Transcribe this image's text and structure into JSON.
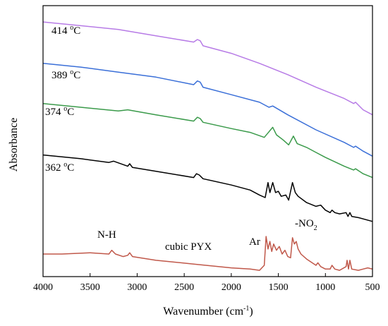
{
  "chart_data": {
    "type": "line",
    "xlabel_main": "Wavenumber (cm",
    "xlabel_sup": "-1",
    "xlabel_end": ")",
    "ylabel": "Absorbance",
    "xlim": [
      4000,
      500
    ],
    "x_reversed": true,
    "y_ticks_shown": false,
    "x_ticks": [
      4000,
      3500,
      3000,
      2500,
      2000,
      1500,
      1000,
      500
    ],
    "series": [
      {
        "label_main": "414 ",
        "label_sup": "o",
        "label_end": "C",
        "color": "#b77be6",
        "points": [
          [
            4000,
            9.55
          ],
          [
            3600,
            9.4
          ],
          [
            3200,
            9.25
          ],
          [
            2800,
            9.0
          ],
          [
            2400,
            8.75
          ],
          [
            2360,
            8.85
          ],
          [
            2330,
            8.8
          ],
          [
            2300,
            8.6
          ],
          [
            2000,
            8.3
          ],
          [
            1700,
            7.9
          ],
          [
            1400,
            7.45
          ],
          [
            1100,
            6.95
          ],
          [
            800,
            6.5
          ],
          [
            700,
            6.3
          ],
          [
            680,
            6.35
          ],
          [
            600,
            6.05
          ],
          [
            500,
            5.85
          ]
        ]
      },
      {
        "label_main": "389 ",
        "label_sup": "o",
        "label_end": "C",
        "color": "#3a6fd8",
        "points": [
          [
            4000,
            7.9
          ],
          [
            3600,
            7.75
          ],
          [
            3200,
            7.55
          ],
          [
            2800,
            7.35
          ],
          [
            2400,
            7.05
          ],
          [
            2360,
            7.2
          ],
          [
            2330,
            7.15
          ],
          [
            2300,
            6.95
          ],
          [
            2000,
            6.65
          ],
          [
            1700,
            6.35
          ],
          [
            1600,
            6.15
          ],
          [
            1560,
            6.2
          ],
          [
            1400,
            5.85
          ],
          [
            1100,
            5.25
          ],
          [
            800,
            4.75
          ],
          [
            700,
            4.55
          ],
          [
            680,
            4.6
          ],
          [
            600,
            4.4
          ],
          [
            500,
            4.2
          ]
        ]
      },
      {
        "label_main": "374 ",
        "label_sup": "o",
        "label_end": "C",
        "color": "#3a9a4a",
        "points": [
          [
            4000,
            6.3
          ],
          [
            3600,
            6.15
          ],
          [
            3200,
            6.0
          ],
          [
            3100,
            6.05
          ],
          [
            2800,
            5.85
          ],
          [
            2400,
            5.6
          ],
          [
            2360,
            5.75
          ],
          [
            2330,
            5.7
          ],
          [
            2300,
            5.55
          ],
          [
            2000,
            5.3
          ],
          [
            1800,
            5.15
          ],
          [
            1650,
            4.95
          ],
          [
            1560,
            5.35
          ],
          [
            1520,
            5.05
          ],
          [
            1450,
            4.85
          ],
          [
            1390,
            4.65
          ],
          [
            1340,
            5.0
          ],
          [
            1300,
            4.7
          ],
          [
            1200,
            4.55
          ],
          [
            1100,
            4.35
          ],
          [
            1000,
            4.15
          ],
          [
            800,
            3.8
          ],
          [
            700,
            3.65
          ],
          [
            680,
            3.7
          ],
          [
            600,
            3.5
          ],
          [
            500,
            3.35
          ]
        ]
      },
      {
        "label_main": "362 ",
        "label_sup": "o",
        "label_end": "C",
        "color": "#000000",
        "points": [
          [
            4000,
            4.25
          ],
          [
            3600,
            4.1
          ],
          [
            3300,
            3.95
          ],
          [
            3250,
            4.0
          ],
          [
            3100,
            3.8
          ],
          [
            3080,
            3.9
          ],
          [
            3050,
            3.75
          ],
          [
            2800,
            3.6
          ],
          [
            2400,
            3.35
          ],
          [
            2370,
            3.5
          ],
          [
            2340,
            3.45
          ],
          [
            2300,
            3.3
          ],
          [
            2000,
            3.05
          ],
          [
            1800,
            2.85
          ],
          [
            1700,
            2.65
          ],
          [
            1640,
            2.55
          ],
          [
            1610,
            3.15
          ],
          [
            1590,
            2.75
          ],
          [
            1560,
            3.15
          ],
          [
            1530,
            2.75
          ],
          [
            1500,
            2.8
          ],
          [
            1470,
            2.6
          ],
          [
            1420,
            2.65
          ],
          [
            1390,
            2.45
          ],
          [
            1350,
            3.15
          ],
          [
            1320,
            2.75
          ],
          [
            1290,
            2.6
          ],
          [
            1200,
            2.35
          ],
          [
            1100,
            2.2
          ],
          [
            1050,
            2.25
          ],
          [
            1000,
            2.05
          ],
          [
            950,
            1.95
          ],
          [
            930,
            2.05
          ],
          [
            900,
            1.95
          ],
          [
            850,
            1.9
          ],
          [
            780,
            1.95
          ],
          [
            760,
            1.8
          ],
          [
            740,
            1.95
          ],
          [
            720,
            1.8
          ],
          [
            650,
            1.75
          ],
          [
            500,
            1.6
          ]
        ]
      },
      {
        "label_main": "",
        "label_sup": "",
        "label_end": "",
        "color": "#c0584a",
        "points": [
          [
            4000,
            0.3
          ],
          [
            3800,
            0.3
          ],
          [
            3500,
            0.35
          ],
          [
            3300,
            0.3
          ],
          [
            3270,
            0.45
          ],
          [
            3230,
            0.3
          ],
          [
            3150,
            0.2
          ],
          [
            3100,
            0.25
          ],
          [
            3080,
            0.35
          ],
          [
            3050,
            0.2
          ],
          [
            2800,
            0.05
          ],
          [
            2400,
            -0.1
          ],
          [
            2000,
            -0.25
          ],
          [
            1800,
            -0.3
          ],
          [
            1700,
            -0.35
          ],
          [
            1650,
            -0.15
          ],
          [
            1630,
            1.0
          ],
          [
            1610,
            0.5
          ],
          [
            1590,
            0.8
          ],
          [
            1570,
            0.4
          ],
          [
            1550,
            0.7
          ],
          [
            1520,
            0.45
          ],
          [
            1490,
            0.6
          ],
          [
            1460,
            0.3
          ],
          [
            1430,
            0.45
          ],
          [
            1400,
            0.2
          ],
          [
            1370,
            0.15
          ],
          [
            1350,
            0.95
          ],
          [
            1330,
            0.7
          ],
          [
            1310,
            0.8
          ],
          [
            1290,
            0.5
          ],
          [
            1260,
            0.3
          ],
          [
            1200,
            0.1
          ],
          [
            1100,
            -0.15
          ],
          [
            1080,
            -0.05
          ],
          [
            1050,
            -0.2
          ],
          [
            1000,
            -0.3
          ],
          [
            950,
            -0.3
          ],
          [
            930,
            -0.15
          ],
          [
            900,
            -0.3
          ],
          [
            850,
            -0.35
          ],
          [
            780,
            -0.2
          ],
          [
            770,
            0.05
          ],
          [
            755,
            -0.3
          ],
          [
            740,
            0.05
          ],
          [
            720,
            -0.3
          ],
          [
            650,
            -0.35
          ],
          [
            600,
            -0.3
          ],
          [
            550,
            -0.25
          ],
          [
            500,
            -0.3
          ]
        ]
      }
    ],
    "annotations": [
      {
        "id": "nh",
        "text_main": "N-H",
        "text_sub": ""
      },
      {
        "id": "pyx",
        "text_main": "cubic PYX",
        "text_sub": ""
      },
      {
        "id": "ar",
        "text_main": "Ar",
        "text_sub": ""
      },
      {
        "id": "no2",
        "text_main": "-NO",
        "text_sub": "2"
      }
    ]
  }
}
